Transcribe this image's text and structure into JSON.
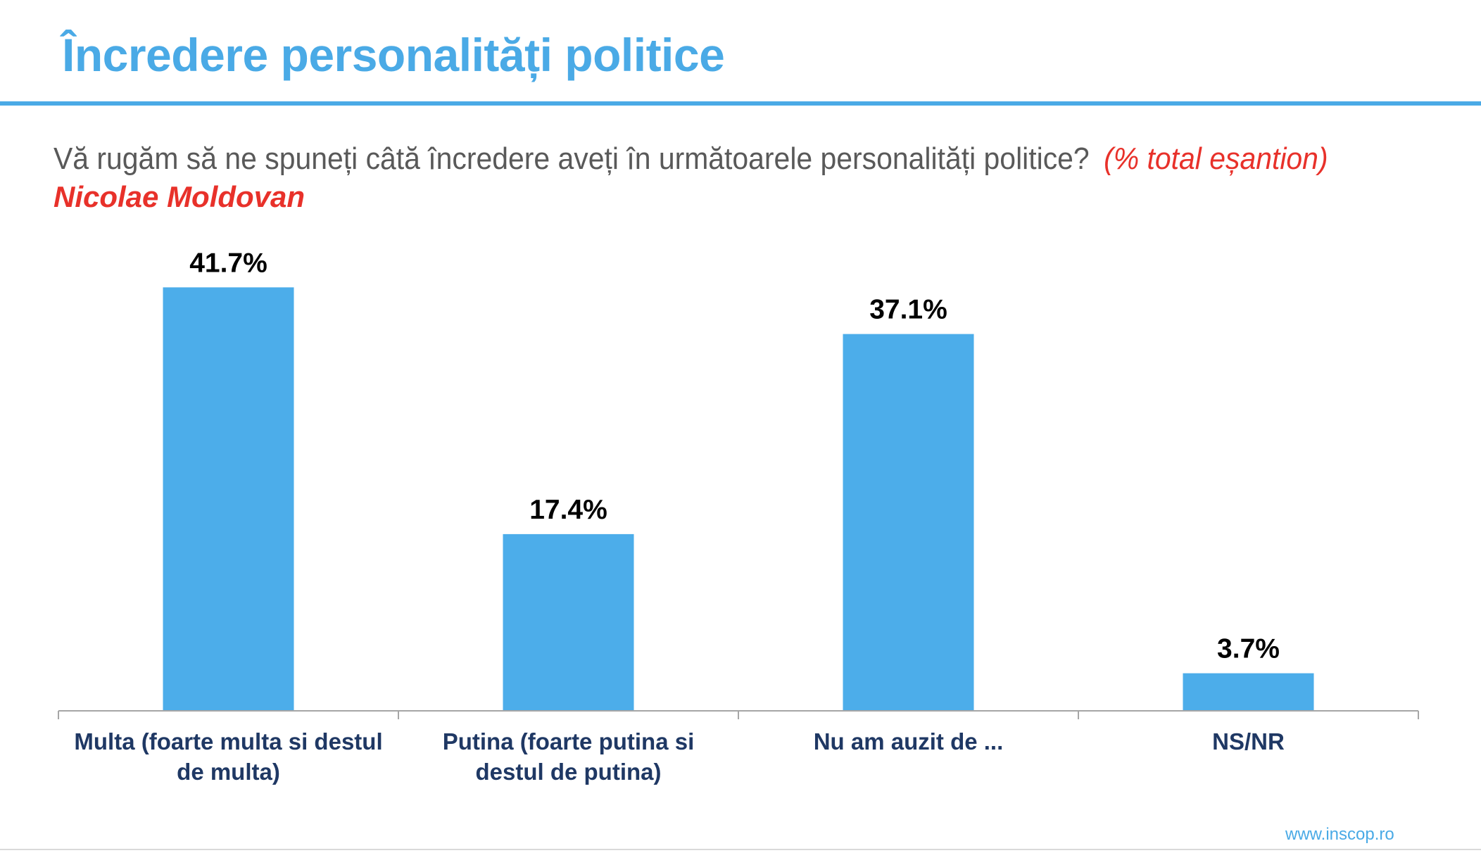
{
  "slide": {
    "title": "Încredere personalități politice",
    "question": "Vă rugăm să ne spuneți câtă încredere aveți în următoarele personalități politice?",
    "sample_note": "(% total eșantion)",
    "subject": "Nicolae Moldovan",
    "footer_link": "www.inscop.ro"
  },
  "colors": {
    "accent": "#4aaae6",
    "bar": "#4cadea",
    "highlight": "#e8312a",
    "category_label": "#1f3864",
    "axis": "#a6a6a6"
  },
  "chart_data": {
    "type": "bar",
    "title": "",
    "xlabel": "",
    "ylabel": "",
    "categories": [
      [
        "Multa (foarte multa si destul",
        "de multa)"
      ],
      [
        "Putina (foarte putina si",
        "destul de putina)"
      ],
      [
        "Nu am auzit de ..."
      ],
      [
        "NS/NR"
      ]
    ],
    "values": [
      41.7,
      17.4,
      37.1,
      3.7
    ],
    "data_labels": [
      "41.7%",
      "17.4%",
      "37.1%",
      "3.7%"
    ],
    "ylim": [
      0,
      45
    ],
    "grid": false,
    "legend": "none"
  }
}
